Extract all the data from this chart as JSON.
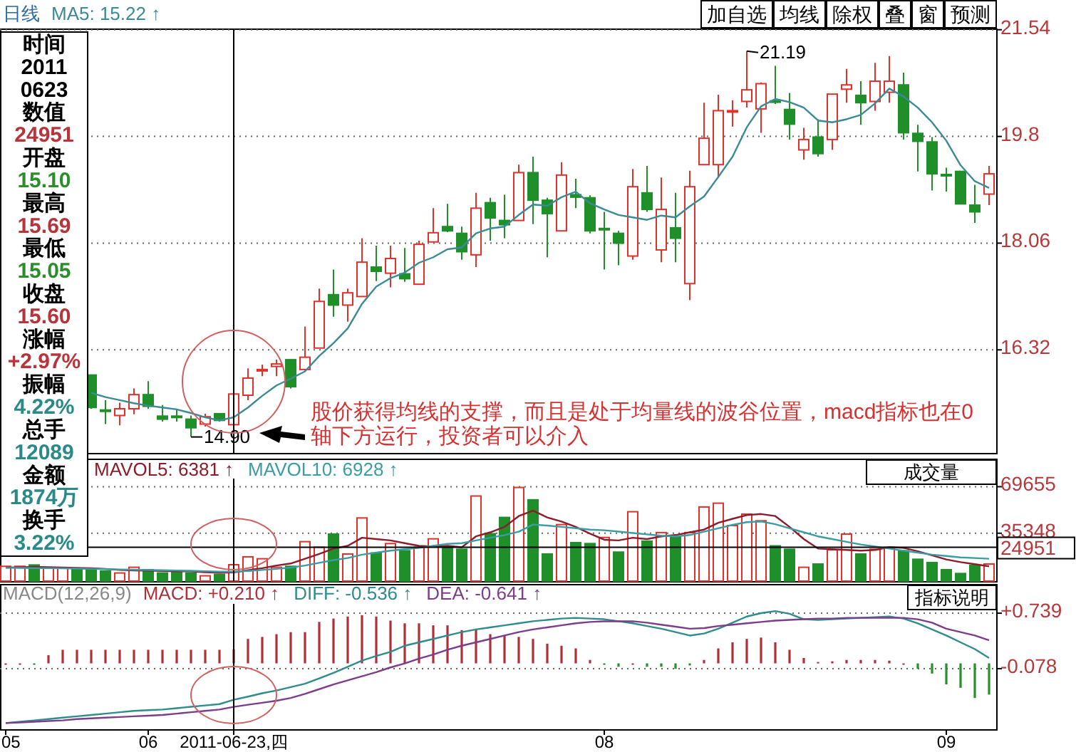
{
  "chart_data": [
    {
      "type": "candlestick",
      "title": "日线",
      "legend": "top left",
      "grid": "y",
      "tick_labels": "y",
      "categories": [
        null,
        null,
        null,
        null,
        null,
        null,
        null,
        null,
        null,
        null,
        null,
        null,
        null,
        null,
        null,
        null,
        null,
        null,
        null,
        null,
        null,
        null,
        null,
        null,
        null,
        null,
        null,
        null,
        null,
        null,
        null,
        null,
        null,
        null,
        null,
        null,
        null,
        null,
        null,
        null,
        null,
        null,
        null,
        null,
        null,
        null,
        null,
        null,
        null,
        null,
        null,
        null,
        null,
        null,
        null,
        null,
        null,
        null,
        null,
        null,
        null,
        null,
        null,
        null,
        null,
        null,
        null,
        null,
        null,
        null
      ],
      "ylim": [
        14.64,
        21.56
      ],
      "yticks": [
        16.32,
        18.06,
        19.8,
        21.54
      ],
      "ohlc": [
        null,
        null,
        null,
        null,
        null,
        null,
        [
          15.91,
          15.91,
          15.36,
          15.38
        ],
        [
          15.34,
          15.5,
          15.11,
          15.34
        ],
        [
          15.25,
          15.46,
          15.09,
          15.36
        ],
        [
          15.36,
          15.69,
          15.27,
          15.59
        ],
        [
          15.59,
          15.81,
          15.36,
          15.4
        ],
        [
          15.24,
          15.42,
          15.15,
          15.19
        ],
        [
          15.24,
          15.36,
          15.15,
          15.23
        ],
        [
          15.19,
          15.25,
          14.9,
          15.05
        ],
        [
          15.11,
          15.28,
          15.07,
          15.23
        ],
        [
          15.28,
          15.28,
          15.15,
          15.17
        ],
        [
          15.1,
          15.69,
          15.05,
          15.6
        ],
        [
          15.58,
          16.02,
          15.5,
          15.86
        ],
        [
          15.98,
          16.08,
          15.89,
          16.0
        ],
        [
          16.05,
          16.16,
          15.89,
          16.09
        ],
        [
          16.16,
          16.16,
          15.69,
          15.72
        ],
        [
          16.0,
          16.7,
          15.98,
          16.2
        ],
        [
          16.35,
          17.32,
          16.35,
          17.11
        ],
        [
          17.22,
          17.63,
          16.86,
          17.05
        ],
        [
          17.05,
          17.32,
          16.78,
          17.25
        ],
        [
          17.19,
          18.14,
          17.19,
          17.75
        ],
        [
          17.67,
          18.02,
          17.44,
          17.6
        ],
        [
          17.57,
          18.02,
          17.34,
          17.81
        ],
        [
          17.56,
          17.98,
          17.43,
          17.48
        ],
        [
          17.39,
          18.1,
          17.39,
          18.04
        ],
        [
          18.08,
          18.63,
          18.08,
          18.23
        ],
        [
          18.33,
          18.7,
          18.24,
          18.26
        ],
        [
          18.22,
          18.33,
          17.79,
          17.92
        ],
        [
          17.87,
          18.88,
          17.67,
          18.63
        ],
        [
          18.72,
          18.8,
          18.1,
          18.47
        ],
        [
          18.43,
          18.85,
          18.14,
          18.36
        ],
        [
          18.43,
          19.34,
          18.43,
          19.21
        ],
        [
          19.21,
          19.47,
          18.37,
          18.76
        ],
        [
          18.76,
          18.8,
          17.83,
          18.54
        ],
        [
          18.26,
          19.38,
          18.26,
          19.17
        ],
        [
          18.85,
          19.11,
          18.63,
          18.81
        ],
        [
          18.8,
          18.84,
          18.22,
          18.26
        ],
        [
          18.3,
          18.57,
          17.63,
          18.28
        ],
        [
          18.22,
          18.26,
          17.7,
          18.06
        ],
        [
          17.85,
          19.27,
          17.79,
          18.98
        ],
        [
          18.88,
          19.32,
          18.57,
          18.61
        ],
        [
          17.95,
          19.13,
          17.75,
          18.61
        ],
        [
          18.31,
          18.88,
          17.75,
          18.14
        ],
        [
          17.4,
          19.24,
          17.13,
          18.98
        ],
        [
          19.34,
          20.35,
          19.34,
          19.77
        ],
        [
          19.34,
          20.48,
          19.13,
          20.22
        ],
        [
          20.2,
          20.39,
          19.96,
          20.22
        ],
        [
          20.37,
          21.19,
          20.27,
          20.56
        ],
        [
          20.25,
          20.68,
          19.86,
          20.66
        ],
        [
          20.38,
          20.95,
          20.33,
          20.37
        ],
        [
          20.24,
          20.51,
          19.75,
          20.0
        ],
        [
          19.58,
          19.94,
          19.42,
          19.75
        ],
        [
          19.79,
          20.08,
          19.47,
          19.52
        ],
        [
          19.75,
          20.49,
          19.58,
          20.49
        ],
        [
          20.57,
          20.9,
          20.35,
          20.64
        ],
        [
          20.47,
          20.7,
          19.99,
          20.35
        ],
        [
          20.37,
          21.0,
          20.22,
          20.7
        ],
        [
          20.52,
          21.11,
          20.35,
          20.7
        ],
        [
          20.64,
          20.84,
          19.75,
          19.86
        ],
        [
          19.85,
          19.99,
          19.23,
          19.72
        ],
        [
          19.71,
          19.79,
          18.92,
          19.19
        ],
        [
          19.18,
          19.29,
          18.9,
          19.16
        ],
        [
          19.23,
          19.23,
          18.7,
          18.7
        ],
        [
          18.68,
          19.01,
          18.39,
          18.57
        ],
        [
          18.86,
          19.32,
          18.68,
          19.19
        ]
      ],
      "colors": [
        null,
        null,
        null,
        null,
        null,
        null,
        "#1f8f2a",
        "#1f8f2a",
        "#e0312a",
        "#e0312a",
        "#1f8f2a",
        "#1f8f2a",
        "#1f8f2a",
        "#1f8f2a",
        "#e0312a",
        "#1f8f2a",
        "#e0312a",
        "#e0312a",
        "#e0312a",
        "#e0312a",
        "#1f8f2a",
        "#e0312a",
        "#e0312a",
        "#1f8f2a",
        "#e0312a",
        "#e0312a",
        "#1f8f2a",
        "#e0312a",
        "#1f8f2a",
        "#e0312a",
        "#e0312a",
        "#1f8f2a",
        "#1f8f2a",
        "#e0312a",
        "#1f8f2a",
        "#1f8f2a",
        "#e0312a",
        "#1f8f2a",
        "#1f8f2a",
        "#e0312a",
        "#1f8f2a",
        "#1f8f2a",
        "#1f8f2a",
        "#1f8f2a",
        "#e0312a",
        "#1f8f2a",
        "#e0312a",
        "#1f8f2a",
        "#e0312a",
        "#e0312a",
        "#e0312a",
        "#e0312a",
        "#e0312a",
        "#e0312a",
        "#1f8f2a",
        "#1f8f2a",
        "#e0312a",
        "#1f8f2a",
        "#e0312a",
        "#e0312a",
        "#1f8f2a",
        "#e0312a",
        "#e0312a",
        "#1f8f2a",
        "#1f8f2a",
        "#1f8f2a",
        "#1f8f2a",
        "#1f8f2a",
        "#1f8f2a",
        "#e0312a"
      ],
      "series": [
        {
          "name": "MA5: 15.22 ↑",
          "type": "line",
          "color": "#3b8a96",
          "values": [
            null,
            null,
            null,
            null,
            null,
            null,
            15.62,
            15.55,
            15.5,
            15.45,
            15.41,
            15.38,
            15.35,
            15.29,
            15.22,
            15.17,
            15.22,
            15.38,
            15.57,
            15.74,
            15.85,
            15.97,
            16.22,
            16.43,
            16.67,
            17.07,
            17.35,
            17.49,
            17.58,
            17.74,
            17.83,
            17.96,
            17.99,
            18.22,
            18.3,
            18.33,
            18.52,
            18.69,
            18.67,
            18.81,
            18.9,
            18.71,
            18.61,
            18.52,
            18.48,
            18.44,
            18.51,
            18.48,
            18.66,
            18.82,
            19.14,
            19.47,
            19.95,
            20.29,
            20.41,
            20.36,
            20.27,
            20.06,
            20.03,
            20.08,
            20.15,
            20.34,
            20.58,
            20.45,
            20.27,
            20.03,
            19.73,
            19.33,
            19.07,
            18.96
          ]
        }
      ],
      "annotations": [
        "14.90",
        "21.19",
        "股价获得均线的支撑，而且是处于均量线的波谷位置，macd指标也在0轴下方运行，投资者可以介入"
      ]
    },
    {
      "type": "bar",
      "legend": "top",
      "grid": "y",
      "tick_labels": "y",
      "categories": [
        null,
        null,
        null,
        null,
        null,
        null,
        null,
        null,
        null,
        null,
        null,
        null,
        null,
        null,
        null,
        null,
        null,
        null,
        null,
        null,
        null,
        null,
        null,
        null,
        null,
        null,
        null,
        null,
        null,
        null,
        null,
        null,
        null,
        null,
        null,
        null,
        null,
        null,
        null,
        null,
        null,
        null,
        null,
        null,
        null,
        null,
        null,
        null,
        null,
        null,
        null,
        null,
        null,
        null,
        null,
        null,
        null,
        null,
        null,
        null,
        null,
        null,
        null,
        null,
        null,
        null,
        null,
        null,
        null,
        null
      ],
      "ylim": [
        0,
        90400
      ],
      "yticks": [
        35348,
        69655
      ],
      "values": [
        10900,
        10900,
        11900,
        9500,
        9500,
        8400,
        8400,
        7400,
        6000,
        10200,
        8400,
        6000,
        7400,
        6000,
        3900,
        4900,
        12089,
        17900,
        16500,
        10200,
        10900,
        29100,
        25000,
        34700,
        20000,
        46600,
        20700,
        27700,
        22400,
        24900,
        31200,
        24900,
        23500,
        62800,
        35000,
        47000,
        69100,
        60000,
        20000,
        41700,
        28400,
        27700,
        32200,
        21400,
        51200,
        29500,
        35800,
        33000,
        35800,
        54700,
        57500,
        41000,
        49400,
        44500,
        26000,
        23500,
        10200,
        12600,
        23100,
        34700,
        20000,
        23500,
        24900,
        22400,
        16100,
        13700,
        8400,
        5600,
        11600,
        12600
      ],
      "colors": [
        "#e0312a",
        "#e0312a",
        "#1f8f2a",
        "#e0312a",
        "#e0312a",
        "#1f8f2a",
        "#1f8f2a",
        "#1f8f2a",
        "#e0312a",
        "#e0312a",
        "#1f8f2a",
        "#1f8f2a",
        "#1f8f2a",
        "#1f8f2a",
        "#e0312a",
        "#1f8f2a",
        "#e0312a",
        "#e0312a",
        "#e0312a",
        "#e0312a",
        "#1f8f2a",
        "#e0312a",
        "#e0312a",
        "#1f8f2a",
        "#e0312a",
        "#e0312a",
        "#1f8f2a",
        "#e0312a",
        "#1f8f2a",
        "#e0312a",
        "#e0312a",
        "#1f8f2a",
        "#1f8f2a",
        "#e0312a",
        "#1f8f2a",
        "#1f8f2a",
        "#e0312a",
        "#1f8f2a",
        "#1f8f2a",
        "#e0312a",
        "#1f8f2a",
        "#1f8f2a",
        "#e0312a",
        "#1f8f2a",
        "#e0312a",
        "#1f8f2a",
        "#e0312a",
        "#1f8f2a",
        "#e0312a",
        "#e0312a",
        "#e0312a",
        "#e0312a",
        "#e0312a",
        "#e0312a",
        "#1f8f2a",
        "#1f8f2a",
        "#e0312a",
        "#1f8f2a",
        "#e0312a",
        "#e0312a",
        "#1f8f2a",
        "#e0312a",
        "#e0312a",
        "#1f8f2a",
        "#1f8f2a",
        "#1f8f2a",
        "#1f8f2a",
        "#1f8f2a",
        "#1f8f2a",
        "#e0312a"
      ],
      "series": [
        {
          "name": "MAVOL5: 6381 ↑",
          "type": "line",
          "color": "#8c1c2a",
          "values": [
            10000,
            10200,
            10500,
            10300,
            10000,
            9800,
            9500,
            9000,
            8200,
            7800,
            7700,
            7400,
            7200,
            7200,
            6600,
            6200,
            6381,
            8000,
            9500,
            11500,
            13000,
            16500,
            20000,
            24000,
            26000,
            32000,
            31000,
            30000,
            28000,
            26000,
            25500,
            26000,
            25000,
            33000,
            36000,
            40000,
            48000,
            52000,
            47000,
            44000,
            40000,
            35000,
            30500,
            30000,
            32000,
            31000,
            33000,
            34000,
            36000,
            38000,
            43000,
            46000,
            48700,
            49500,
            48000,
            40000,
            31000,
            24000,
            23500,
            23000,
            22500,
            23000,
            25000,
            24500,
            22000,
            19000,
            16000,
            14000,
            12500,
            10900
          ]
        },
        {
          "name": "MAVOL10: 6928 ↑",
          "type": "line",
          "color": "#3a9ca4",
          "values": [
            9800,
            9700,
            9600,
            9500,
            9400,
            9200,
            9000,
            8800,
            8600,
            8400,
            8200,
            8000,
            7800,
            7600,
            7300,
            7000,
            6928,
            7500,
            8200,
            9000,
            10000,
            11500,
            13500,
            15500,
            17000,
            19500,
            21000,
            22500,
            23500,
            24500,
            26000,
            27500,
            28000,
            30000,
            32000,
            34000,
            36500,
            41700,
            41000,
            40000,
            39000,
            38000,
            37500,
            36500,
            35500,
            34500,
            33500,
            33000,
            34000,
            36500,
            39000,
            41500,
            43500,
            44000,
            42000,
            39000,
            36000,
            33000,
            31000,
            29000,
            27000,
            25500,
            24000,
            22400,
            21000,
            19500,
            18500,
            17500,
            17000,
            16500
          ]
        }
      ],
      "ref_lines": [
        {
          "axis": "y",
          "value": 24951,
          "label": "24951",
          "color": "#000000"
        }
      ],
      "annotations": [
        "成交量"
      ]
    },
    {
      "type": "bar",
      "title": "MACD(12,26,9)",
      "legend": "top left",
      "grid": "y",
      "categories": [
        "05",
        null,
        null,
        null,
        null,
        null,
        null,
        null,
        null,
        null,
        "06",
        null,
        null,
        null,
        null,
        null,
        "2011-06-23,四",
        null,
        null,
        null,
        null,
        null,
        null,
        null,
        null,
        null,
        null,
        null,
        null,
        null,
        null,
        null,
        null,
        null,
        null,
        null,
        null,
        null,
        null,
        null,
        null,
        null,
        "08",
        null,
        null,
        null,
        null,
        null,
        null,
        null,
        null,
        null,
        null,
        null,
        null,
        null,
        null,
        null,
        null,
        null,
        null,
        null,
        null,
        null,
        null,
        null,
        "09",
        null,
        null,
        null
      ],
      "ylim": [
        -0.97,
        1.17
      ],
      "yticks": [
        {
          "value": 0.739,
          "label": "+0.739"
        },
        -0.078
      ],
      "series": [
        {
          "name": "MACD: +0.210 ↑",
          "type": "bar",
          "color": "#b0303a",
          "values": [
            0.0,
            0.0,
            -0.01,
            0.12,
            0.2,
            0.2,
            0.2,
            0.2,
            0.2,
            0.2,
            0.2,
            0.2,
            0.2,
            0.2,
            0.2,
            0.2,
            0.21,
            0.36,
            0.39,
            0.43,
            0.46,
            0.46,
            0.61,
            0.66,
            0.69,
            0.71,
            0.69,
            0.63,
            0.59,
            0.59,
            0.56,
            0.56,
            0.49,
            0.51,
            0.43,
            0.41,
            0.39,
            0.36,
            0.29,
            0.26,
            0.22,
            0.05,
            -0.02,
            -0.05,
            0.0,
            -0.05,
            -0.05,
            -0.08,
            -0.03,
            0.05,
            0.22,
            0.31,
            0.36,
            0.38,
            0.31,
            0.2,
            0.08,
            0.02,
            0.03,
            0.05,
            0.05,
            0.05,
            0.04,
            0.0,
            -0.08,
            -0.15,
            -0.31,
            -0.36,
            -0.51,
            -0.46
          ],
          "colors": [
            "#b0303a",
            "#b0303a",
            "#2a8f2a",
            "#b0303a",
            "#b0303a",
            "#b0303a",
            "#b0303a",
            "#b0303a",
            "#b0303a",
            "#b0303a",
            "#b0303a",
            "#b0303a",
            "#b0303a",
            "#b0303a",
            "#b0303a",
            "#b0303a",
            "#b0303a",
            "#b0303a",
            "#b0303a",
            "#b0303a",
            "#b0303a",
            "#b0303a",
            "#b0303a",
            "#b0303a",
            "#b0303a",
            "#b0303a",
            "#b0303a",
            "#b0303a",
            "#b0303a",
            "#b0303a",
            "#b0303a",
            "#b0303a",
            "#b0303a",
            "#b0303a",
            "#b0303a",
            "#b0303a",
            "#b0303a",
            "#b0303a",
            "#b0303a",
            "#b0303a",
            "#b0303a",
            "#b0303a",
            "#2a8f2a",
            "#2a8f2a",
            "#b0303a",
            "#2a8f2a",
            "#2a8f2a",
            "#2a8f2a",
            "#2a8f2a",
            "#b0303a",
            "#b0303a",
            "#b0303a",
            "#b0303a",
            "#b0303a",
            "#b0303a",
            "#b0303a",
            "#b0303a",
            "#b0303a",
            "#b0303a",
            "#b0303a",
            "#b0303a",
            "#b0303a",
            "#b0303a",
            "#b0303a",
            "#2a8f2a",
            "#2a8f2a",
            "#2a8f2a",
            "#2a8f2a",
            "#2a8f2a",
            "#2a8f2a"
          ]
        },
        {
          "name": "DIFF: -0.536 ↑",
          "type": "line",
          "color": "#2e8c8c",
          "values": [
            -0.88,
            -0.86,
            -0.84,
            -0.82,
            -0.8,
            -0.78,
            -0.76,
            -0.74,
            -0.72,
            -0.7,
            -0.69,
            -0.68,
            -0.66,
            -0.64,
            -0.62,
            -0.6,
            -0.536,
            -0.49,
            -0.44,
            -0.4,
            -0.35,
            -0.3,
            -0.22,
            -0.14,
            -0.05,
            0.04,
            0.11,
            0.17,
            0.26,
            0.31,
            0.36,
            0.41,
            0.46,
            0.5,
            0.53,
            0.56,
            0.59,
            0.62,
            0.64,
            0.66,
            0.67,
            0.66,
            0.65,
            0.62,
            0.59,
            0.55,
            0.51,
            0.46,
            0.41,
            0.44,
            0.51,
            0.6,
            0.69,
            0.74,
            0.77,
            0.73,
            0.65,
            0.64,
            0.65,
            0.66,
            0.67,
            0.68,
            0.69,
            0.66,
            0.59,
            0.5,
            0.41,
            0.31,
            0.21,
            0.08
          ]
        },
        {
          "name": "DEA: -0.641 ↑",
          "type": "line",
          "color": "#7b3d8c",
          "values": [
            -0.88,
            -0.87,
            -0.86,
            -0.85,
            -0.84,
            -0.82,
            -0.81,
            -0.8,
            -0.79,
            -0.78,
            -0.77,
            -0.76,
            -0.74,
            -0.72,
            -0.7,
            -0.68,
            -0.641,
            -0.61,
            -0.58,
            -0.55,
            -0.51,
            -0.45,
            -0.38,
            -0.31,
            -0.25,
            -0.19,
            -0.13,
            -0.06,
            0.0,
            0.07,
            0.13,
            0.2,
            0.26,
            0.31,
            0.36,
            0.41,
            0.46,
            0.5,
            0.53,
            0.56,
            0.59,
            0.61,
            0.62,
            0.62,
            0.62,
            0.6,
            0.57,
            0.54,
            0.51,
            0.52,
            0.55,
            0.57,
            0.59,
            0.61,
            0.63,
            0.64,
            0.65,
            0.66,
            0.66,
            0.67,
            0.67,
            0.67,
            0.67,
            0.67,
            0.65,
            0.6,
            0.51,
            0.46,
            0.41,
            0.34
          ]
        }
      ],
      "ref_lines": [
        {
          "axis": "x",
          "value": "2011-06-23,四",
          "color": "#000000"
        }
      ],
      "annotations": [
        "指标说明"
      ]
    },
    {
      "type": "other",
      "annotations": [
        "时间",
        "2011",
        "0623",
        "数值",
        "24951",
        "开盘",
        "15.10",
        "最高",
        "15.69",
        "最低",
        "15.05",
        "收盘",
        "15.60",
        "涨幅",
        "+2.97%",
        "振幅",
        "4.22%",
        "总手",
        "12089",
        "金额",
        "1874万",
        "换手",
        "3.22%"
      ],
      "colors": [
        "#000000",
        "#000000",
        "#000000",
        "#000000",
        "#b8343a",
        "#000000",
        "#2a8f2a",
        "#000000",
        "#b8343a",
        "#000000",
        "#2a8f2a",
        "#000000",
        "#b8343a",
        "#000000",
        "#b8343a",
        "#000000",
        "#2a8a8a",
        "#000000",
        "#2a8a8a",
        "#000000",
        "#2a8a8a",
        "#000000",
        "#2a8a8a"
      ]
    },
    {
      "type": "other",
      "annotations": [
        "加自选",
        "均线",
        "除权",
        "叠",
        "窗",
        "预测"
      ]
    }
  ]
}
